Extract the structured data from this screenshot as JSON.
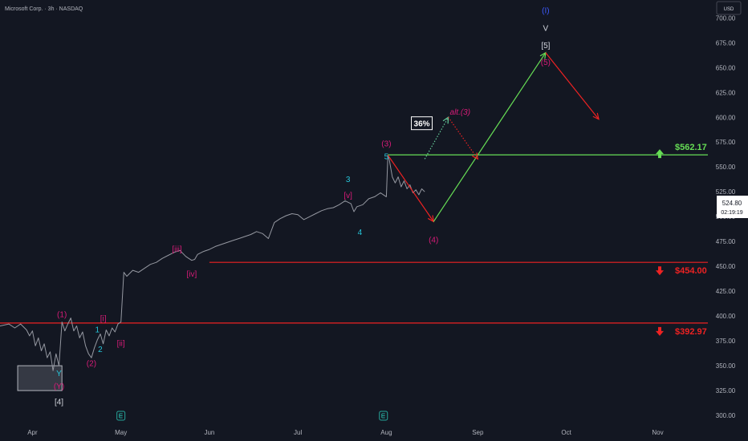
{
  "header": {
    "title": "Microsoft Corp. · 3h · NASDAQ"
  },
  "currency": "USD",
  "last_price": {
    "value": "524.80",
    "countdown": "02:19:19"
  },
  "colors": {
    "background": "#131722",
    "price_line": "#9598a1",
    "magenta": "#d81b78",
    "cyan": "#26c6da",
    "blue": "#3d5afe",
    "white": "#d1d4dc",
    "green": "#66dd55",
    "red": "#ee2222",
    "grey_text": "#b2b5be"
  },
  "chart_data": {
    "type": "line",
    "y_axis": {
      "ylim": [
        292,
        718
      ],
      "ticks": [
        300,
        325,
        350,
        375,
        400,
        425,
        450,
        475,
        500,
        525,
        550,
        575,
        600,
        625,
        650,
        675,
        700
      ],
      "labels": [
        "300.00",
        "325.00",
        "350.00",
        "375.00",
        "400.00",
        "425.00",
        "450.00",
        "475.00",
        "500.00",
        "525.00",
        "550.00",
        "575.00",
        "600.00",
        "625.00",
        "650.00",
        "675.00",
        "700.00"
      ]
    },
    "x_axis": {
      "xlim": [
        0,
        240
      ],
      "ticks": [
        {
          "label": "Apr",
          "x": 11
        },
        {
          "label": "May",
          "x": 41
        },
        {
          "label": "Jun",
          "x": 71
        },
        {
          "label": "Jul",
          "x": 101
        },
        {
          "label": "Aug",
          "x": 131
        },
        {
          "label": "Sep",
          "x": 162
        },
        {
          "label": "Oct",
          "x": 192
        },
        {
          "label": "Nov",
          "x": 223
        }
      ]
    },
    "price_series": [
      [
        0,
        390
      ],
      [
        3,
        392
      ],
      [
        5,
        388
      ],
      [
        7,
        392
      ],
      [
        9,
        386
      ],
      [
        10,
        380
      ],
      [
        11,
        385
      ],
      [
        12,
        370
      ],
      [
        13,
        378
      ],
      [
        14,
        365
      ],
      [
        15,
        372
      ],
      [
        16,
        358
      ],
      [
        17,
        364
      ],
      [
        18,
        345
      ],
      [
        19,
        362
      ],
      [
        20,
        350
      ],
      [
        21,
        394
      ],
      [
        22,
        385
      ],
      [
        23,
        392
      ],
      [
        24,
        398
      ],
      [
        25,
        385
      ],
      [
        26,
        390
      ],
      [
        27,
        378
      ],
      [
        28,
        384
      ],
      [
        29,
        370
      ],
      [
        30,
        362
      ],
      [
        31,
        358
      ],
      [
        32,
        368
      ],
      [
        33,
        376
      ],
      [
        34,
        382
      ],
      [
        35,
        372
      ],
      [
        36,
        386
      ],
      [
        37,
        380
      ],
      [
        38,
        388
      ],
      [
        39,
        384
      ],
      [
        40,
        392
      ],
      [
        41,
        394
      ],
      [
        42,
        444
      ],
      [
        43,
        440
      ],
      [
        45,
        446
      ],
      [
        47,
        444
      ],
      [
        49,
        448
      ],
      [
        51,
        452
      ],
      [
        53,
        454
      ],
      [
        55,
        458
      ],
      [
        57,
        461
      ],
      [
        59,
        464
      ],
      [
        61,
        466
      ],
      [
        63,
        460
      ],
      [
        64,
        458
      ],
      [
        65,
        456
      ],
      [
        66,
        457
      ],
      [
        67,
        462
      ],
      [
        69,
        465
      ],
      [
        71,
        467
      ],
      [
        73,
        470
      ],
      [
        75,
        472
      ],
      [
        77,
        474
      ],
      [
        79,
        476
      ],
      [
        81,
        478
      ],
      [
        83,
        480
      ],
      [
        85,
        482
      ],
      [
        87,
        485
      ],
      [
        89,
        483
      ],
      [
        91,
        478
      ],
      [
        93,
        494
      ],
      [
        95,
        498
      ],
      [
        97,
        501
      ],
      [
        99,
        503
      ],
      [
        101,
        502
      ],
      [
        103,
        497
      ],
      [
        105,
        500
      ],
      [
        107,
        503
      ],
      [
        109,
        506
      ],
      [
        111,
        508
      ],
      [
        113,
        509
      ],
      [
        115,
        512
      ],
      [
        117,
        516
      ],
      [
        119,
        513
      ],
      [
        120,
        505
      ],
      [
        121,
        510
      ],
      [
        123,
        512
      ],
      [
        125,
        518
      ],
      [
        127,
        520
      ],
      [
        129,
        524
      ],
      [
        130,
        522
      ],
      [
        131,
        520
      ],
      [
        131.5,
        562
      ],
      [
        132,
        557
      ],
      [
        133,
        540
      ],
      [
        134,
        534
      ],
      [
        135,
        540
      ],
      [
        136,
        530
      ],
      [
        137,
        536
      ],
      [
        138,
        528
      ],
      [
        139,
        532
      ],
      [
        140,
        524
      ],
      [
        141,
        527
      ],
      [
        142,
        522
      ],
      [
        143,
        528
      ],
      [
        144,
        525
      ]
    ],
    "levels": [
      {
        "name": "resistance",
        "value": 562.17,
        "label": "$562.17",
        "color": "green"
      },
      {
        "name": "support-1",
        "value": 454.0,
        "label": "$454.00",
        "color": "red"
      },
      {
        "name": "support-2",
        "value": 392.97,
        "label": "$392.97",
        "color": "red"
      }
    ],
    "projection": {
      "red_down": [
        [
          131.5,
          562
        ],
        [
          147,
          495
        ]
      ],
      "green_up": [
        [
          147,
          495
        ],
        [
          185,
          665
        ]
      ],
      "red_final": [
        [
          185,
          665
        ],
        [
          203,
          598
        ]
      ],
      "alt_green": [
        [
          144,
          558
        ],
        [
          152,
          600
        ]
      ],
      "alt_red": [
        [
          152,
          600
        ],
        [
          162,
          558
        ]
      ]
    },
    "box": {
      "x1": 6,
      "x2": 21,
      "y1": 325,
      "y2": 350
    },
    "wave_labels": [
      {
        "text": "(I)",
        "x": 185,
        "y": 708,
        "color": "blue"
      },
      {
        "text": "V",
        "x": 185,
        "y": 690,
        "color": "white"
      },
      {
        "text": "[5]",
        "x": 185,
        "y": 673,
        "color": "white"
      },
      {
        "text": "(5)",
        "x": 185,
        "y": 656,
        "color": "magenta"
      },
      {
        "text": "alt.(3)",
        "x": 156,
        "y": 606,
        "color": "magenta",
        "italic": true
      },
      {
        "text": "(3)",
        "x": 131,
        "y": 574,
        "color": "magenta"
      },
      {
        "text": "5",
        "x": 131,
        "y": 561,
        "color": "cyan"
      },
      {
        "text": "3",
        "x": 118,
        "y": 538,
        "color": "cyan"
      },
      {
        "text": "[v]",
        "x": 118,
        "y": 522,
        "color": "magenta"
      },
      {
        "text": "4",
        "x": 122,
        "y": 485,
        "color": "cyan"
      },
      {
        "text": "(4)",
        "x": 147,
        "y": 477,
        "color": "magenta"
      },
      {
        "text": "[iii]",
        "x": 60,
        "y": 468,
        "color": "magenta"
      },
      {
        "text": "[iv]",
        "x": 65,
        "y": 443,
        "color": "magenta"
      },
      {
        "text": "(1)",
        "x": 21,
        "y": 402,
        "color": "magenta"
      },
      {
        "text": "[i]",
        "x": 35,
        "y": 398,
        "color": "magenta"
      },
      {
        "text": "1",
        "x": 33,
        "y": 387,
        "color": "cyan"
      },
      {
        "text": "2",
        "x": 34,
        "y": 367,
        "color": "cyan"
      },
      {
        "text": "[ii]",
        "x": 41,
        "y": 373,
        "color": "magenta"
      },
      {
        "text": "(2)",
        "x": 31,
        "y": 353,
        "color": "magenta"
      },
      {
        "text": "Y",
        "x": 20,
        "y": 343,
        "color": "cyan"
      },
      {
        "text": "(Y)",
        "x": 20,
        "y": 330,
        "color": "magenta"
      },
      {
        "text": "[4]",
        "x": 20,
        "y": 314,
        "color": "white"
      }
    ],
    "probability_badge": {
      "text": "36%",
      "x": 143,
      "y": 594
    },
    "events": [
      {
        "x": 41
      },
      {
        "x": 130
      }
    ]
  }
}
